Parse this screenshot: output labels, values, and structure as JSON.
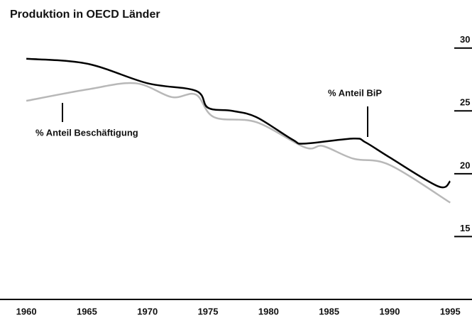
{
  "chart_data": {
    "type": "line",
    "title": "Produktion in OECD Länder",
    "series": [
      {
        "name": "% Anteil BiP",
        "color": "#000000",
        "x": [
          1960,
          1965,
          1970,
          1974,
          1975,
          1977,
          1979,
          1982,
          1983,
          1987,
          1988,
          1990,
          1994,
          1995
        ],
        "values": [
          29.15,
          28.76,
          27.2,
          26.6,
          25.25,
          25.0,
          24.5,
          22.7,
          22.4,
          22.8,
          22.5,
          21.3,
          19.0,
          19.4
        ]
      },
      {
        "name": "% Anteil Beschäftigung",
        "color": "#b8b8b8",
        "x": [
          1960,
          1965,
          1969,
          1972,
          1974,
          1975.5,
          1979,
          1983,
          1984.5,
          1987,
          1990,
          1995
        ],
        "values": [
          25.8,
          26.7,
          27.2,
          26.1,
          26.3,
          24.5,
          24.1,
          22.1,
          22.2,
          21.2,
          20.7,
          17.7
        ]
      }
    ],
    "xlim": [
      1958,
      1996.8
    ],
    "xticks": [
      1960,
      1965,
      1970,
      1975,
      1980,
      1985,
      1990,
      1995
    ],
    "ylim": [
      10,
      31
    ],
    "yticks": [
      15,
      20,
      25,
      30
    ]
  }
}
